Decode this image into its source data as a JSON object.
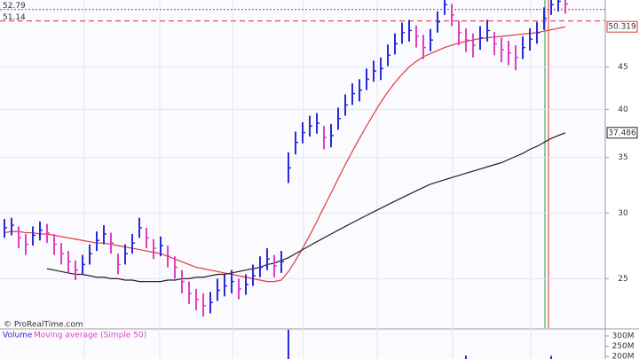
{
  "chart_data": {
    "type": "ohlc",
    "source": "© ProRealTime.com",
    "high": [
      29.5,
      29.6,
      28.9,
      28.3,
      28.9,
      29.3,
      29.1,
      28.3,
      27.6,
      27.0,
      26.3,
      26.7,
      27.5,
      28.5,
      29.0,
      28.4,
      26.8,
      27.5,
      28.3,
      29.6,
      28.8,
      27.9,
      28.1,
      27.4,
      26.6,
      25.6,
      24.8,
      24.3,
      24.0,
      24.1,
      25.0,
      25.3,
      25.6,
      25.0,
      25.3,
      26.0,
      26.6,
      27.2,
      26.7,
      27.0,
      35.5,
      37.6,
      38.6,
      39.3,
      39.6,
      38.2,
      38.4,
      40.2,
      41.7,
      43.0,
      43.5,
      44.8,
      45.8,
      46.2,
      47.9,
      49.4,
      50.9,
      51.3,
      50.5,
      49.2,
      50.0,
      52.5,
      55.0,
      53.6,
      51.2,
      50.1,
      49.4,
      50.4,
      51.3,
      49.6,
      48.8,
      48.4,
      47.8,
      49.0,
      50.1,
      51.0,
      53.1,
      55.0,
      55.5,
      55.0
    ],
    "low": [
      28.0,
      28.2,
      27.2,
      26.7,
      27.4,
      27.8,
      27.6,
      26.7,
      26.0,
      25.4,
      24.9,
      25.3,
      26.0,
      27.0,
      27.5,
      26.8,
      25.3,
      26.0,
      26.8,
      28.0,
      27.2,
      26.4,
      26.6,
      25.8,
      25.0,
      24.0,
      23.3,
      22.9,
      22.5,
      22.7,
      23.5,
      23.8,
      24.0,
      23.6,
      23.9,
      24.5,
      25.1,
      25.6,
      25.1,
      25.4,
      32.6,
      35.3,
      36.4,
      37.1,
      37.4,
      35.8,
      36.0,
      37.8,
      39.3,
      40.5,
      40.9,
      42.2,
      43.2,
      43.4,
      45.1,
      46.6,
      48.0,
      48.3,
      47.5,
      46.0,
      47.0,
      49.5,
      52.0,
      50.4,
      47.8,
      46.9,
      46.2,
      47.2,
      48.3,
      46.5,
      45.6,
      45.2,
      44.6,
      46.0,
      47.1,
      48.0,
      49.9,
      52.0,
      52.5,
      52.2
    ],
    "close": [
      28.8,
      29.0,
      28.0,
      27.5,
      28.2,
      28.6,
      28.4,
      27.5,
      26.8,
      26.2,
      25.6,
      26.0,
      26.8,
      27.8,
      28.3,
      27.6,
      26.0,
      26.8,
      27.6,
      28.8,
      28.0,
      27.2,
      27.4,
      26.6,
      25.8,
      24.8,
      24.0,
      23.6,
      23.2,
      23.4,
      24.2,
      24.5,
      24.8,
      24.3,
      24.6,
      25.2,
      25.8,
      26.4,
      25.9,
      26.2,
      34.0,
      36.5,
      37.5,
      38.2,
      38.5,
      37.0,
      37.2,
      39.0,
      40.5,
      41.8,
      42.2,
      43.5,
      44.5,
      44.8,
      46.5,
      48.0,
      49.5,
      49.8,
      49.0,
      47.5,
      48.5,
      51.0,
      53.5,
      52.0,
      49.5,
      48.5,
      47.8,
      48.8,
      49.8,
      48.0,
      47.2,
      46.8,
      46.2,
      47.5,
      48.6,
      49.5,
      51.5,
      53.5,
      54.0,
      53.6
    ],
    "up_color": "#2b2bd6",
    "down_color": "#e040c0",
    "series": [
      {
        "color": "#e03a3a",
        "values": [
          28.4,
          28.5,
          28.5,
          28.4,
          28.4,
          28.3,
          28.3,
          28.2,
          28.1,
          28.0,
          27.9,
          27.8,
          27.7,
          27.6,
          27.6,
          27.5,
          27.4,
          27.3,
          27.2,
          27.1,
          27.0,
          26.9,
          26.8,
          26.6,
          26.4,
          26.2,
          26.0,
          25.8,
          25.7,
          25.6,
          25.5,
          25.4,
          25.3,
          25.2,
          25.1,
          25.0,
          24.9,
          24.8,
          24.8,
          24.9,
          25.5,
          26.3,
          27.2,
          28.2,
          29.3,
          30.5,
          31.7,
          33.0,
          34.3,
          35.6,
          36.9,
          38.2,
          39.5,
          40.8,
          42.0,
          43.1,
          44.1,
          45.0,
          45.7,
          46.3,
          46.7,
          47.1,
          47.5,
          47.8,
          48.1,
          48.3,
          48.5,
          48.7,
          48.8,
          48.9,
          49.0,
          49.1,
          49.2,
          49.3,
          49.4,
          49.5,
          49.7,
          49.9,
          50.1,
          50.319
        ]
      },
      {
        "color": "#222222",
        "values": [
          null,
          null,
          null,
          null,
          null,
          null,
          25.7,
          25.6,
          25.5,
          25.4,
          25.3,
          25.3,
          25.2,
          25.1,
          25.1,
          25.0,
          25.0,
          24.9,
          24.9,
          24.8,
          24.8,
          24.8,
          24.8,
          24.9,
          24.9,
          25.0,
          25.0,
          25.1,
          25.1,
          25.2,
          25.3,
          25.3,
          25.4,
          25.5,
          25.6,
          25.7,
          25.8,
          26.0,
          26.1,
          26.3,
          26.5,
          26.8,
          27.1,
          27.4,
          27.7,
          28.0,
          28.3,
          28.6,
          28.9,
          29.2,
          29.5,
          29.8,
          30.1,
          30.4,
          30.7,
          31.0,
          31.3,
          31.6,
          31.9,
          32.2,
          32.5,
          32.7,
          32.9,
          33.1,
          33.3,
          33.5,
          33.7,
          33.9,
          34.1,
          34.3,
          34.5,
          34.8,
          35.1,
          35.4,
          35.8,
          36.1,
          36.5,
          36.9,
          37.2,
          37.486
        ]
      }
    ],
    "levels": [
      {
        "value": 52.79,
        "color": "#d03030"
      },
      {
        "value": 51.14,
        "color": "#d03030"
      }
    ],
    "log_scale": true,
    "ylim": [
      21.8,
      54.2
    ],
    "yticks": [
      25,
      30,
      35,
      40,
      45
    ],
    "volume": {
      "title": "Volume",
      "subtitle": "Moving average (Simple 50)",
      "color": "#2b2bd6",
      "values": [
        95,
        90,
        100,
        110,
        85,
        90,
        95,
        100,
        120,
        115,
        130,
        110,
        100,
        105,
        95,
        90,
        140,
        120,
        100,
        130,
        110,
        105,
        95,
        100,
        115,
        125,
        140,
        150,
        145,
        120,
        110,
        100,
        95,
        105,
        90,
        110,
        120,
        115,
        100,
        105,
        330,
        180,
        150,
        140,
        130,
        120,
        125,
        130,
        140,
        135,
        125,
        120,
        115,
        130,
        140,
        150,
        145,
        135,
        150,
        160,
        140,
        170,
        185,
        160,
        175,
        205,
        150,
        140,
        130,
        145,
        150,
        160,
        140,
        130,
        120,
        135,
        150,
        203,
        170,
        140
      ],
      "ylim": [
        188,
        330
      ],
      "yticks": [
        {
          "value": 200,
          "label": "200M"
        },
        {
          "value": 250,
          "label": "250M"
        },
        {
          "value": 300,
          "label": "300M"
        }
      ]
    }
  }
}
